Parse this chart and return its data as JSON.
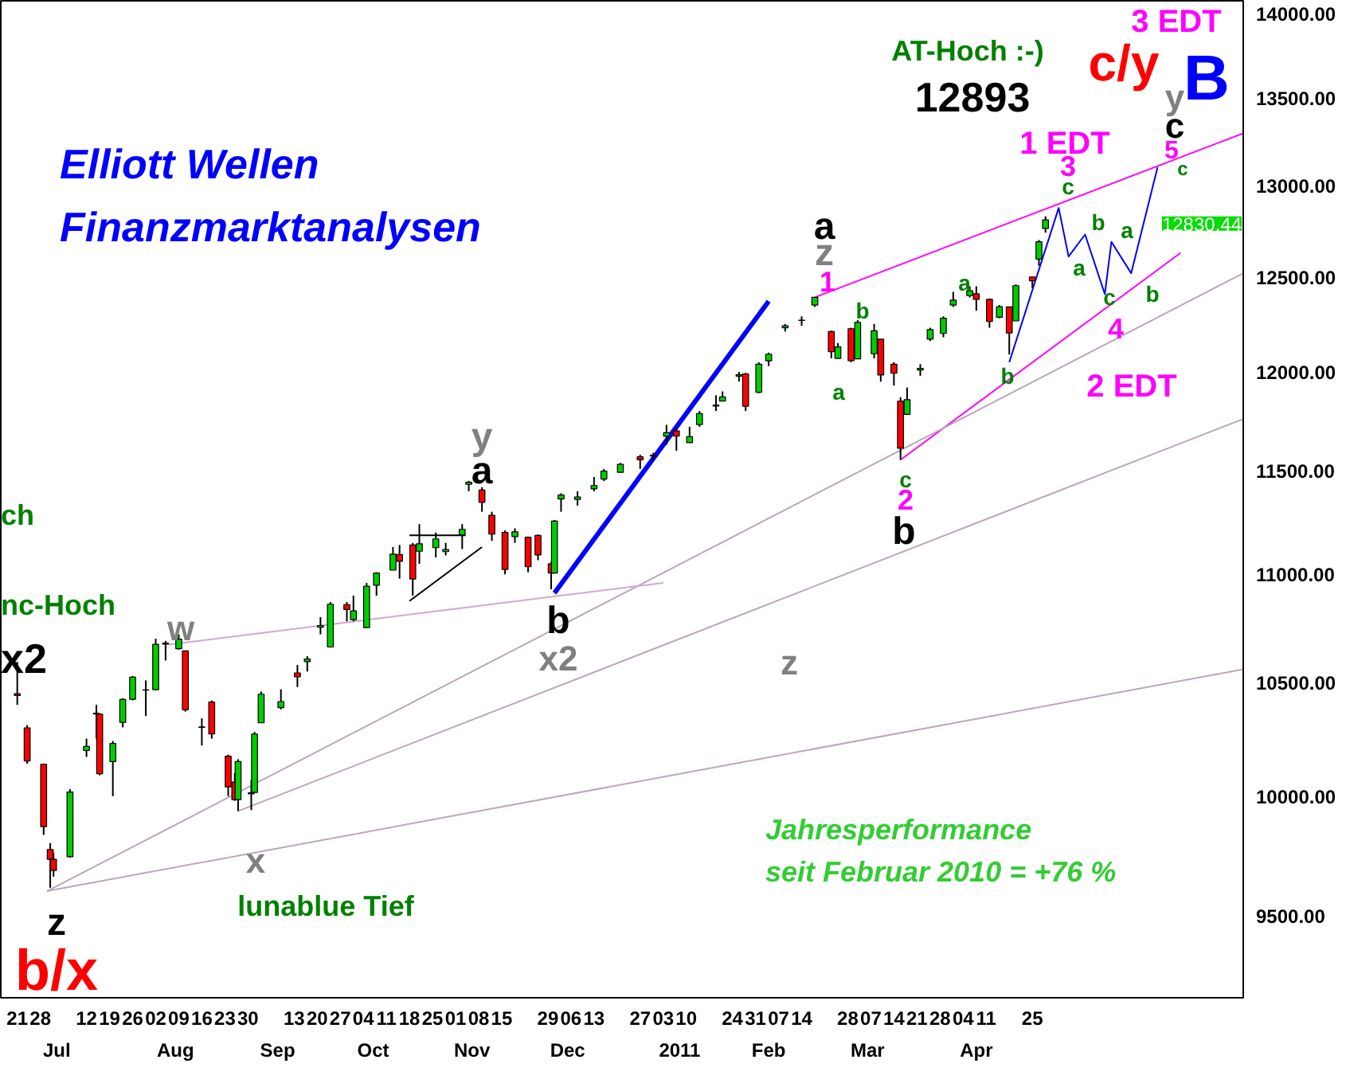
{
  "chart_data": {
    "type": "candlestick",
    "x": [
      "2010-06-21",
      "2010-06-24",
      "2010-06-29",
      "2010-07-01",
      "2010-07-02",
      "2010-07-07",
      "2010-07-12",
      "2010-07-15",
      "2010-07-16",
      "2010-07-20",
      "2010-07-23",
      "2010-07-26",
      "2010-07-30",
      "2010-08-02",
      "2010-08-05",
      "2010-08-09",
      "2010-08-11",
      "2010-08-16",
      "2010-08-19",
      "2010-08-24",
      "2010-08-26",
      "2010-08-27",
      "2010-08-31",
      "2010-09-01",
      "2010-09-03",
      "2010-09-09",
      "2010-09-14",
      "2010-09-17",
      "2010-09-21",
      "2010-09-24",
      "2010-09-29",
      "2010-10-01",
      "2010-10-05",
      "2010-10-08",
      "2010-10-13",
      "2010-10-15",
      "2010-10-19",
      "2010-10-21",
      "2010-10-26",
      "2010-10-29",
      "2010-11-03",
      "2010-11-05",
      "2010-11-09",
      "2010-11-12",
      "2010-11-16",
      "2010-11-19",
      "2010-11-23",
      "2010-11-26",
      "2010-11-30",
      "2010-12-01",
      "2010-12-03",
      "2010-12-08",
      "2010-12-13",
      "2010-12-16",
      "2010-12-21",
      "2010-12-27",
      "2010-12-31",
      "2011-01-04",
      "2011-01-07",
      "2011-01-11",
      "2011-01-14",
      "2011-01-19",
      "2011-01-21",
      "2011-01-26",
      "2011-01-28",
      "2011-02-01",
      "2011-02-04",
      "2011-02-09",
      "2011-02-14",
      "2011-02-18",
      "2011-02-23",
      "2011-02-25",
      "2011-03-01",
      "2011-03-03",
      "2011-03-08",
      "2011-03-10",
      "2011-03-14",
      "2011-03-16",
      "2011-03-18",
      "2011-03-22",
      "2011-03-25",
      "2011-03-29",
      "2011-04-01",
      "2011-04-06",
      "2011-04-08",
      "2011-04-12",
      "2011-04-15",
      "2011-04-18",
      "2011-04-20",
      "2011-04-25",
      "2011-04-27",
      "2011-04-29"
    ],
    "ohlc": [
      [
        10450,
        10594,
        10400,
        10442
      ],
      [
        10298,
        10310,
        10140,
        10152
      ],
      [
        10138,
        10140,
        9835,
        9870
      ],
      [
        9773,
        9800,
        9614,
        9732
      ],
      [
        9732,
        9760,
        9660,
        9686
      ],
      [
        9743,
        10030,
        9740,
        10018
      ],
      [
        10198,
        10250,
        10170,
        10216
      ],
      [
        10363,
        10400,
        10250,
        10359
      ],
      [
        10359,
        10360,
        10090,
        10097
      ],
      [
        10150,
        10240,
        10000,
        10229
      ],
      [
        10322,
        10430,
        10300,
        10424
      ],
      [
        10425,
        10530,
        10420,
        10525
      ],
      [
        10467,
        10510,
        10350,
        10466
      ],
      [
        10468,
        10700,
        10468,
        10674
      ],
      [
        10675,
        10690,
        10600,
        10680
      ],
      [
        10654,
        10720,
        10650,
        10698
      ],
      [
        10644,
        10645,
        10370,
        10378
      ],
      [
        10300,
        10340,
        10220,
        10302
      ],
      [
        10413,
        10420,
        10250,
        10271
      ],
      [
        10173,
        10180,
        10000,
        10040
      ],
      [
        10061,
        10100,
        9980,
        9985
      ],
      [
        9985,
        10160,
        9936,
        10150
      ],
      [
        10010,
        10070,
        9940,
        10014
      ],
      [
        10016,
        10280,
        10016,
        10270
      ],
      [
        10320,
        10460,
        10320,
        10448
      ],
      [
        10388,
        10470,
        10380,
        10415
      ],
      [
        10544,
        10580,
        10480,
        10526
      ],
      [
        10595,
        10620,
        10550,
        10607
      ],
      [
        10753,
        10800,
        10720,
        10761
      ],
      [
        10662,
        10870,
        10660,
        10860
      ],
      [
        10858,
        10870,
        10780,
        10835
      ],
      [
        10788,
        10900,
        10780,
        10829
      ],
      [
        10751,
        10960,
        10750,
        10944
      ],
      [
        10949,
        11010,
        10900,
        11006
      ],
      [
        11020,
        11130,
        11020,
        11096
      ],
      [
        11094,
        11140,
        10980,
        11062
      ],
      [
        11140,
        11150,
        10900,
        10978
      ],
      [
        11110,
        11240,
        11050,
        11146
      ],
      [
        11127,
        11200,
        11080,
        11169
      ],
      [
        11108,
        11150,
        11090,
        11118
      ],
      [
        11188,
        11240,
        11120,
        11215
      ],
      [
        11434,
        11451,
        11400,
        11444
      ],
      [
        11406,
        11420,
        11300,
        11346
      ],
      [
        11283,
        11300,
        11160,
        11192
      ],
      [
        11200,
        11210,
        11000,
        11023
      ],
      [
        11180,
        11220,
        11150,
        11203
      ],
      [
        11177,
        11180,
        11010,
        11036
      ],
      [
        11186,
        11190,
        11067,
        11092
      ],
      [
        11050,
        11060,
        10930,
        11006
      ],
      [
        11006,
        11260,
        11006,
        11255
      ],
      [
        11362,
        11390,
        11300,
        11382
      ],
      [
        11360,
        11400,
        11330,
        11372
      ],
      [
        11412,
        11470,
        11400,
        11428
      ],
      [
        11460,
        11510,
        11450,
        11499
      ],
      [
        11493,
        11540,
        11490,
        11533
      ],
      [
        11570,
        11580,
        11510,
        11555
      ],
      [
        11574,
        11590,
        11550,
        11578
      ],
      [
        11673,
        11730,
        11630,
        11691
      ],
      [
        11700,
        11710,
        11600,
        11674
      ],
      [
        11641,
        11720,
        11640,
        11671
      ],
      [
        11732,
        11800,
        11720,
        11787
      ],
      [
        11830,
        11880,
        11800,
        11825
      ],
      [
        11851,
        11900,
        11850,
        11872
      ],
      [
        11978,
        12000,
        11950,
        11985
      ],
      [
        11990,
        11995,
        11800,
        11824
      ],
      [
        11895,
        12050,
        11890,
        12040
      ],
      [
        12057,
        12100,
        12030,
        12092
      ],
      [
        12230,
        12250,
        12210,
        12240
      ],
      [
        12270,
        12290,
        12240,
        12268
      ],
      [
        12350,
        12391,
        12340,
        12391
      ],
      [
        12210,
        12215,
        12070,
        12105
      ],
      [
        12070,
        12150,
        12068,
        12130
      ],
      [
        12225,
        12230,
        12050,
        12058
      ],
      [
        12068,
        12270,
        12068,
        12258
      ],
      [
        12094,
        12250,
        12070,
        12214
      ],
      [
        12170,
        12170,
        11950,
        11984
      ],
      [
        12040,
        12050,
        11930,
        11993
      ],
      [
        11850,
        11870,
        11555,
        11613
      ],
      [
        11783,
        11920,
        11780,
        11858
      ],
      [
        12010,
        12040,
        11980,
        12018
      ],
      [
        12170,
        12230,
        12160,
        12220
      ],
      [
        12200,
        12290,
        12180,
        12280
      ],
      [
        12350,
        12420,
        12340,
        12376
      ],
      [
        12400,
        12450,
        12390,
        12426
      ],
      [
        12410,
        12450,
        12320,
        12380
      ],
      [
        12380,
        12385,
        12230,
        12263
      ],
      [
        12285,
        12350,
        12280,
        12341
      ],
      [
        12340,
        12341,
        12090,
        12202
      ],
      [
        12266,
        12460,
        12266,
        12453
      ],
      [
        12500,
        12500,
        12440,
        12479
      ],
      [
        12596,
        12700,
        12560,
        12690
      ],
      [
        12763,
        12830,
        12740,
        12810
      ]
    ],
    "colors": [
      "#ff0000",
      "#ff0000",
      "#ff0000",
      "#ff0000",
      "#ff0000",
      "#00cc00",
      "#00cc00",
      "#ff0000",
      "#ff0000",
      "#00cc00",
      "#00cc00",
      "#00cc00",
      "#ff0000",
      "#00cc00",
      "#00cc00",
      "#00cc00",
      "#ff0000",
      "#00cc00",
      "#ff0000",
      "#ff0000",
      "#ff0000",
      "#00cc00",
      "#00cc00",
      "#00cc00",
      "#00cc00",
      "#00cc00",
      "#ff0000",
      "#00cc00",
      "#00cc00",
      "#00cc00",
      "#ff0000",
      "#00cc00",
      "#00cc00",
      "#00cc00",
      "#00cc00",
      "#ff0000",
      "#ff0000",
      "#00cc00",
      "#00cc00",
      "#00cc00",
      "#00cc00",
      "#00cc00",
      "#ff0000",
      "#ff0000",
      "#ff0000",
      "#00cc00",
      "#ff0000",
      "#ff0000",
      "#ff0000",
      "#00cc00",
      "#00cc00",
      "#00cc00",
      "#00cc00",
      "#00cc00",
      "#00cc00",
      "#ff0000",
      "#00cc00",
      "#00cc00",
      "#ff0000",
      "#00cc00",
      "#00cc00",
      "#ff0000",
      "#00cc00",
      "#00cc00",
      "#ff0000",
      "#00cc00",
      "#00cc00",
      "#00cc00",
      "#ff0000",
      "#00cc00",
      "#ff0000",
      "#00cc00",
      "#ff0000",
      "#00cc00",
      "#00cc00",
      "#ff0000",
      "#ff0000",
      "#ff0000",
      "#00cc00",
      "#00cc00",
      "#00cc00",
      "#00cc00",
      "#00cc00",
      "#00cc00",
      "#ff0000",
      "#ff0000",
      "#00cc00",
      "#ff0000",
      "#00cc00",
      "#ff0000",
      "#00cc00",
      "#00cc00"
    ],
    "series": [
      {
        "type": "line",
        "color": "#ff00ff",
        "x": [
          "2011-02-18",
          "2011-06-28"
        ],
        "values": [
          12391,
          13296
        ]
      },
      {
        "type": "line",
        "color": "#ff00ff",
        "x": [
          "2011-03-16",
          "2011-06-09"
        ],
        "values": [
          11555,
          12630
        ]
      },
      {
        "type": "line",
        "color": "#b8a8b8",
        "x": [
          "2010-06-30",
          "2011-06-28"
        ],
        "values": [
          9600,
          12520
        ]
      },
      {
        "type": "line",
        "color": "#b8a8b8",
        "x": [
          "2010-08-27",
          "2011-06-28"
        ],
        "values": [
          9936,
          11760
        ]
      },
      {
        "type": "line",
        "color": "#b8a8b8",
        "x": [
          "2010-06-30",
          "2011-06-28"
        ],
        "values": [
          9600,
          10560
        ]
      },
      {
        "type": "line",
        "color": "#d0a8d0",
        "x": [
          "2010-08-06",
          "2011-01-03"
        ],
        "values": [
          10673,
          10960
        ]
      },
      {
        "type": "line",
        "color": "#000000",
        "x": [
          "2010-10-18",
          "2010-11-04"
        ],
        "values": [
          11186,
          11186
        ]
      },
      {
        "type": "line",
        "color": "#000000",
        "x": [
          "2010-10-18",
          "2010-11-09"
        ],
        "values": [
          10875,
          11130
        ]
      },
      {
        "type": "line",
        "color": "#0000ff",
        "x": [
          "2010-12-01",
          "2011-02-04"
        ],
        "values": [
          10912,
          12370
        ]
      },
      {
        "type": "line",
        "color": "#0000ff",
        "x": [
          "2011-04-18",
          "2011-05-03",
          "2011-05-06",
          "2011-05-11",
          "2011-05-17",
          "2011-05-19",
          "2011-05-25",
          "2011-06-02"
        ],
        "values": [
          12050,
          12876,
          12610,
          12730,
          12408,
          12690,
          12520,
          13103
        ]
      }
    ],
    "xlim": [
      "2010-06-16",
      "2011-06-28"
    ],
    "xticks": [
      {
        "value": "2010-06-21",
        "label": "21"
      },
      {
        "value": "2010-06-28",
        "label": "28"
      },
      {
        "value": "2010-07-12",
        "label": "12"
      },
      {
        "value": "2010-07-19",
        "label": "19"
      },
      {
        "value": "2010-07-26",
        "label": "26"
      },
      {
        "value": "2010-08-02",
        "label": "02"
      },
      {
        "value": "2010-08-09",
        "label": "09"
      },
      {
        "value": "2010-08-16",
        "label": "16"
      },
      {
        "value": "2010-08-23",
        "label": "23"
      },
      {
        "value": "2010-08-30",
        "label": "30"
      },
      {
        "value": "2010-09-13",
        "label": "13"
      },
      {
        "value": "2010-09-20",
        "label": "20"
      },
      {
        "value": "2010-09-27",
        "label": "27"
      },
      {
        "value": "2010-10-04",
        "label": "04"
      },
      {
        "value": "2010-10-11",
        "label": "11"
      },
      {
        "value": "2010-10-18",
        "label": "18"
      },
      {
        "value": "2010-10-25",
        "label": "25"
      },
      {
        "value": "2010-11-01",
        "label": "01"
      },
      {
        "value": "2010-11-08",
        "label": "08"
      },
      {
        "value": "2010-11-15",
        "label": "15"
      },
      {
        "value": "2010-11-29",
        "label": "29"
      },
      {
        "value": "2010-12-06",
        "label": "06"
      },
      {
        "value": "2010-12-13",
        "label": "13"
      },
      {
        "value": "2010-12-27",
        "label": "27"
      },
      {
        "value": "2011-01-03",
        "label": "03"
      },
      {
        "value": "2011-01-10",
        "label": "10"
      },
      {
        "value": "2011-01-24",
        "label": "24"
      },
      {
        "value": "2011-01-31",
        "label": "31"
      },
      {
        "value": "2011-02-07",
        "label": "07"
      },
      {
        "value": "2011-02-14",
        "label": "14"
      },
      {
        "value": "2011-02-28",
        "label": "28"
      },
      {
        "value": "2011-03-07",
        "label": "07"
      },
      {
        "value": "2011-03-14",
        "label": "14"
      },
      {
        "value": "2011-03-21",
        "label": "21"
      },
      {
        "value": "2011-03-28",
        "label": "28"
      },
      {
        "value": "2011-04-04",
        "label": "04"
      },
      {
        "value": "2011-04-11",
        "label": "11"
      },
      {
        "value": "2011-04-25",
        "label": "25"
      }
    ],
    "x2lim": [
      "2010-06-16",
      "2011-06-28"
    ],
    "x2ticks": [
      {
        "value": "2010-07-03",
        "label": "Jul"
      },
      {
        "value": "2010-08-08",
        "label": "Aug"
      },
      {
        "value": "2010-09-08",
        "label": "Sep"
      },
      {
        "value": "2010-10-07",
        "label": "Oct"
      },
      {
        "value": "2010-11-06",
        "label": "Nov"
      },
      {
        "value": "2010-12-05",
        "label": "Dec"
      },
      {
        "value": "2011-01-08",
        "label": "2011"
      },
      {
        "value": "2011-02-04",
        "label": "Feb"
      },
      {
        "value": "2011-03-06",
        "label": "Mar"
      },
      {
        "value": "2011-04-08",
        "label": "Apr"
      }
    ],
    "log": "y",
    "ylim": [
      9170,
      14075
    ],
    "yticks": [
      {
        "value": 9500,
        "label": "9500.00"
      },
      {
        "value": 10000,
        "label": "10000.00"
      },
      {
        "value": 10500,
        "label": "10500.00"
      },
      {
        "value": 11000,
        "label": "11000.00"
      },
      {
        "value": 11500,
        "label": "11500.00"
      },
      {
        "value": 12000,
        "label": "12000.00"
      },
      {
        "value": 12500,
        "label": "12500.00"
      },
      {
        "value": 13000,
        "label": "13000.00"
      },
      {
        "value": 13500,
        "label": "13500.00"
      },
      {
        "value": 14000,
        "label": "14000.00"
      }
    ],
    "annotations": [
      "Elliott Wellen",
      "Finanzmarktanalysen",
      "AT-Hoch :-)",
      "12893",
      "3 EDT",
      "c/y",
      "B",
      "ch",
      "nc-Hoch",
      "x2",
      "b/x",
      "1 EDT",
      "2 EDT",
      "Jahresperformance",
      "seit Februar 2010 = +76 %",
      "12830.44",
      "z",
      "w",
      "x",
      "lunablue Tief",
      "y",
      "a",
      "b",
      "x2",
      "z",
      "a",
      "z",
      "1",
      "a",
      "b",
      "c",
      "2",
      "b",
      "a",
      "b",
      "3",
      "c",
      "a",
      "b",
      "c",
      "4",
      "a",
      "b",
      "5",
      "c",
      "y",
      "c"
    ]
  }
}
